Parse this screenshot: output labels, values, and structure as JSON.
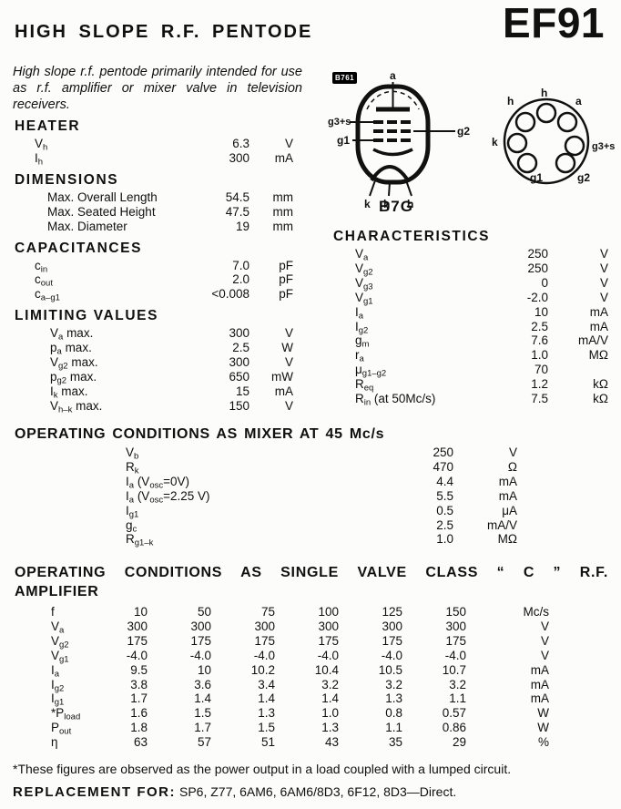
{
  "header": {
    "title": "HIGH SLOPE R.F. PENTODE",
    "model": "EF91"
  },
  "intro": "High slope r.f. pentode primarily intended for use as r.f. amplifier or mixer valve in television receivers.",
  "diagram": {
    "badge": "B761",
    "caption": "B7G",
    "side_view": {
      "anode": "a",
      "grid3": "g3+s",
      "grid1": "g1",
      "grid2": "g2",
      "pins": [
        "k",
        "h",
        "h"
      ]
    },
    "base_view": {
      "top": "h",
      "top_left": "h",
      "top_right": "a",
      "left": "k",
      "right": "g3+s",
      "bottom_left": "g1",
      "bottom_right": "g2"
    }
  },
  "specs": {
    "heater": {
      "heading": "HEATER",
      "rows": [
        {
          "label": [
            {
              "t": "V"
            },
            {
              "t": "h",
              "sub": true
            }
          ],
          "value": "6.3",
          "unit": "V"
        },
        {
          "label": [
            {
              "t": "I"
            },
            {
              "t": "h",
              "sub": true
            }
          ],
          "value": "300",
          "unit": "mA"
        }
      ]
    },
    "dimensions": {
      "heading": "DIMENSIONS",
      "rows": [
        {
          "label": [
            {
              "t": "Max. Overall Length"
            }
          ],
          "value": "54.5",
          "unit": "mm"
        },
        {
          "label": [
            {
              "t": "Max. Seated Height"
            }
          ],
          "value": "47.5",
          "unit": "mm"
        },
        {
          "label": [
            {
              "t": "Max. Diameter"
            }
          ],
          "value": "19",
          "unit": "mm"
        }
      ]
    },
    "capacitances": {
      "heading": "CAPACITANCES",
      "rows": [
        {
          "label": [
            {
              "t": "c"
            },
            {
              "t": "in",
              "sub": true
            }
          ],
          "value": "7.0",
          "unit": "pF"
        },
        {
          "label": [
            {
              "t": "c"
            },
            {
              "t": "out",
              "sub": true
            }
          ],
          "value": "2.0",
          "unit": "pF"
        },
        {
          "label": [
            {
              "t": "c"
            },
            {
              "t": "a–g1",
              "sub": true
            }
          ],
          "value": "<0.008",
          "unit": "pF"
        }
      ]
    },
    "limiting": {
      "heading": "LIMITING VALUES",
      "rows": [
        {
          "label": [
            {
              "t": "V"
            },
            {
              "t": "a",
              "sub": true
            },
            {
              "t": " max."
            }
          ],
          "value": "300",
          "unit": "V"
        },
        {
          "label": [
            {
              "t": "p"
            },
            {
              "t": "a",
              "sub": true
            },
            {
              "t": " max."
            }
          ],
          "value": "2.5",
          "unit": "W"
        },
        {
          "label": [
            {
              "t": "V"
            },
            {
              "t": "g2",
              "sub": true
            },
            {
              "t": " max."
            }
          ],
          "value": "300",
          "unit": "V"
        },
        {
          "label": [
            {
              "t": "p"
            },
            {
              "t": "g2",
              "sub": true
            },
            {
              "t": " max."
            }
          ],
          "value": "650",
          "unit": "mW"
        },
        {
          "label": [
            {
              "t": "I"
            },
            {
              "t": "k",
              "sub": true
            },
            {
              "t": " max."
            }
          ],
          "value": "15",
          "unit": "mA"
        },
        {
          "label": [
            {
              "t": "V"
            },
            {
              "t": "h–k",
              "sub": true
            },
            {
              "t": " max."
            }
          ],
          "value": "150",
          "unit": "V"
        }
      ]
    },
    "characteristics": {
      "heading": "CHARACTERISTICS",
      "rows": [
        {
          "label": [
            {
              "t": "V"
            },
            {
              "t": "a",
              "sub": true
            }
          ],
          "value": "250",
          "unit": "V"
        },
        {
          "label": [
            {
              "t": "V"
            },
            {
              "t": "g2",
              "sub": true
            }
          ],
          "value": "250",
          "unit": "V"
        },
        {
          "label": [
            {
              "t": "V"
            },
            {
              "t": "g3",
              "sub": true
            }
          ],
          "value": "0",
          "unit": "V"
        },
        {
          "label": [
            {
              "t": "V"
            },
            {
              "t": "g1",
              "sub": true
            }
          ],
          "value": "-2.0",
          "unit": "V"
        },
        {
          "label": [
            {
              "t": "I"
            },
            {
              "t": "a",
              "sub": true
            }
          ],
          "value": "10",
          "unit": "mA"
        },
        {
          "label": [
            {
              "t": "I"
            },
            {
              "t": "g2",
              "sub": true
            }
          ],
          "value": "2.5",
          "unit": "mA"
        },
        {
          "label": [
            {
              "t": "g"
            },
            {
              "t": "m",
              "sub": true
            }
          ],
          "value": "7.6",
          "unit": "mA/V"
        },
        {
          "label": [
            {
              "t": "r"
            },
            {
              "t": "a",
              "sub": true
            }
          ],
          "value": "1.0",
          "unit": "MΩ"
        },
        {
          "label": [
            {
              "t": "μ"
            },
            {
              "t": "g1–g2",
              "sub": true
            }
          ],
          "value": "70",
          "unit": ""
        },
        {
          "label": [
            {
              "t": "R"
            },
            {
              "t": "eq",
              "sub": true
            }
          ],
          "value": "1.2",
          "unit": "kΩ"
        },
        {
          "label": [
            {
              "t": "R"
            },
            {
              "t": "in",
              "sub": true
            },
            {
              "t": " (at 50Mc/s)"
            }
          ],
          "value": "7.5",
          "unit": "kΩ"
        }
      ]
    },
    "mixer": {
      "heading": "OPERATING CONDITIONS AS MIXER AT 45 Mc/s",
      "rows": [
        {
          "label": [
            {
              "t": "V"
            },
            {
              "t": "b",
              "sub": true
            }
          ],
          "value": "250",
          "unit": "V"
        },
        {
          "label": [
            {
              "t": "R"
            },
            {
              "t": "k",
              "sub": true
            }
          ],
          "value": "470",
          "unit": "Ω"
        },
        {
          "label": [
            {
              "t": "I"
            },
            {
              "t": "a",
              "sub": true
            },
            {
              "t": " (V"
            },
            {
              "t": "osc",
              "sub": true
            },
            {
              "t": "=0V)"
            }
          ],
          "value": "4.4",
          "unit": "mA"
        },
        {
          "label": [
            {
              "t": "I"
            },
            {
              "t": "a",
              "sub": true
            },
            {
              "t": " (V"
            },
            {
              "t": "osc",
              "sub": true
            },
            {
              "t": "=2.25 V)"
            }
          ],
          "value": "5.5",
          "unit": "mA"
        },
        {
          "label": [
            {
              "t": "I"
            },
            {
              "t": "g1",
              "sub": true
            }
          ],
          "value": "0.5",
          "unit": "μA"
        },
        {
          "label": [
            {
              "t": "g"
            },
            {
              "t": "c",
              "sub": true
            }
          ],
          "value": "2.5",
          "unit": "mA/V"
        },
        {
          "label": [
            {
              "t": "R"
            },
            {
              "t": "g1–k",
              "sub": true
            }
          ],
          "value": "1.0",
          "unit": "MΩ"
        }
      ]
    },
    "class_c": {
      "heading_line1": "OPERATING CONDITIONS AS SINGLE VALVE CLASS “ C ” R.F.",
      "heading_line2": "AMPLIFIER",
      "rows": [
        {
          "label": [
            {
              "t": "f"
            }
          ],
          "values": [
            "10",
            "50",
            "75",
            "100",
            "125",
            "150"
          ],
          "unit": "Mc/s"
        },
        {
          "label": [
            {
              "t": "V"
            },
            {
              "t": "a",
              "sub": true
            }
          ],
          "values": [
            "300",
            "300",
            "300",
            "300",
            "300",
            "300"
          ],
          "unit": "V"
        },
        {
          "label": [
            {
              "t": "V"
            },
            {
              "t": "g2",
              "sub": true
            }
          ],
          "values": [
            "175",
            "175",
            "175",
            "175",
            "175",
            "175"
          ],
          "unit": "V"
        },
        {
          "label": [
            {
              "t": "V"
            },
            {
              "t": "g1",
              "sub": true
            }
          ],
          "values": [
            "-4.0",
            "-4.0",
            "-4.0",
            "-4.0",
            "-4.0",
            "-4.0"
          ],
          "unit": "V"
        },
        {
          "label": [
            {
              "t": "I"
            },
            {
              "t": "a",
              "sub": true
            }
          ],
          "values": [
            "9.5",
            "10",
            "10.2",
            "10.4",
            "10.5",
            "10.7"
          ],
          "unit": "mA"
        },
        {
          "label": [
            {
              "t": "I"
            },
            {
              "t": "g2",
              "sub": true
            }
          ],
          "values": [
            "3.8",
            "3.6",
            "3.4",
            "3.2",
            "3.2",
            "3.2"
          ],
          "unit": "mA"
        },
        {
          "label": [
            {
              "t": "I"
            },
            {
              "t": "g1",
              "sub": true
            }
          ],
          "values": [
            "1.7",
            "1.4",
            "1.4",
            "1.4",
            "1.3",
            "1.1"
          ],
          "unit": "mA"
        },
        {
          "label": [
            {
              "t": "*P"
            },
            {
              "t": "load",
              "sub": true
            }
          ],
          "values": [
            "1.6",
            "1.5",
            "1.3",
            "1.0",
            "0.8",
            "0.57"
          ],
          "unit": "W"
        },
        {
          "label": [
            {
              "t": "P"
            },
            {
              "t": "out",
              "sub": true
            }
          ],
          "values": [
            "1.8",
            "1.7",
            "1.5",
            "1.3",
            "1.1",
            "0.86"
          ],
          "unit": "W"
        },
        {
          "label": [
            {
              "t": "η"
            }
          ],
          "values": [
            "63",
            "57",
            "51",
            "43",
            "35",
            "29"
          ],
          "unit": "%"
        }
      ]
    }
  },
  "footnote": "*These figures are observed as the power output in a load coupled with a lumped circuit.",
  "replacement": {
    "label": "REPLACEMENT FOR:",
    "value": "SP6, Z77, 6AM6, 6AM6/8D3, 6F12, 8D3—Direct."
  }
}
